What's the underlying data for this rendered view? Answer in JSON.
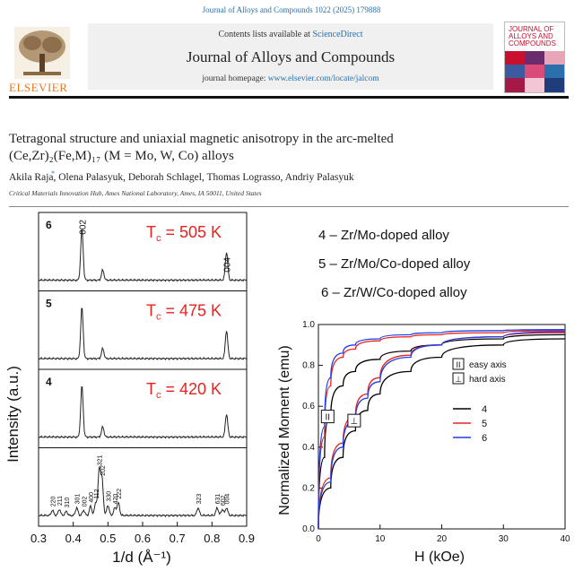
{
  "header": {
    "journal_ref": "Journal of Alloys and Compounds 1022 (2025) 179888",
    "contents_prefix": "Contents lists available at ",
    "contents_link": "ScienceDirect",
    "journal_title": "Journal of Alloys and Compounds",
    "homepage_prefix": "journal homepage: ",
    "homepage_link": "www.elsevier.com/locate/jalcom",
    "publisher": "ELSEVIER",
    "cover_title": "JOURNAL OF ALLOYS AND COMPOUNDS"
  },
  "article": {
    "title_line1": "Tetragonal structure and uniaxial magnetic anisotropy in the arc-melted",
    "title_line2": "(Ce,Zr)₂(Fe,M)₁₇ (M = Mo, W, Co) alloys",
    "authors": "Akila Raja, Olena Palasyuk, Deborah Schlagel, Thomas Lograsso, Andriy Palasyuk",
    "corresponding_mark": "*",
    "affiliation": "Critical Materials Innovation Hub, Ames National Laboratory, Ames, IA 50011, United States"
  },
  "alloy_labels": [
    "4 – Zr/Mo-doped alloy",
    "5 – Zr/Mo/Co-doped alloy",
    "6 – Zr/W/Co-doped alloy"
  ],
  "colors": {
    "link": "#2b6fa8",
    "elsevier": "#e87722",
    "tc": "#e8231f",
    "series4": "#000000",
    "series5": "#e8231f",
    "series6": "#1f3fe8"
  },
  "chart_data": [
    {
      "type": "line",
      "xlabel": "1/d (Å⁻¹)",
      "ylabel": "Intensity (a.u.)",
      "xlim": [
        0.3,
        0.9
      ],
      "x_ticks": [
        "0.3",
        "0.4",
        "0.5",
        "0.6",
        "0.7",
        "0.8",
        "0.9"
      ],
      "panels": [
        {
          "label": "6",
          "tc_text": "T",
          "tc_sub": "c",
          "tc_value": " = 505 K",
          "peaks": [
            [
              0.425,
              1.0
            ],
            [
              0.485,
              0.2
            ],
            [
              0.842,
              0.55
            ]
          ],
          "peak_labels": [
            "002",
            "004"
          ]
        },
        {
          "label": "5",
          "tc_text": "T",
          "tc_sub": "c",
          "tc_value": " = 475 K",
          "peaks": [
            [
              0.425,
              1.0
            ],
            [
              0.485,
              0.2
            ],
            [
              0.842,
              0.55
            ]
          ]
        },
        {
          "label": "4",
          "tc_text": "T",
          "tc_sub": "c",
          "tc_value": " = 420 K",
          "peaks": [
            [
              0.425,
              1.0
            ],
            [
              0.485,
              0.2
            ],
            [
              0.842,
              0.45
            ]
          ]
        },
        {
          "label": "",
          "peaks": [
            [
              0.34,
              0.1
            ],
            [
              0.36,
              0.12
            ],
            [
              0.38,
              0.08
            ],
            [
              0.41,
              0.15
            ],
            [
              0.43,
              0.1
            ],
            [
              0.45,
              0.18
            ],
            [
              0.465,
              0.25
            ],
            [
              0.475,
              0.9
            ],
            [
              0.483,
              0.7
            ],
            [
              0.5,
              0.2
            ],
            [
              0.52,
              0.15
            ],
            [
              0.53,
              0.25
            ],
            [
              0.76,
              0.15
            ],
            [
              0.815,
              0.15
            ],
            [
              0.83,
              0.12
            ],
            [
              0.842,
              0.15
            ]
          ],
          "peak_labels": [
            "220",
            "211",
            "310",
            "301",
            "002",
            "400",
            "112",
            "321",
            "202",
            "330",
            "420",
            "222",
            "323",
            "631",
            "602",
            "004"
          ]
        }
      ]
    },
    {
      "type": "line",
      "xlabel": "H (kOe)",
      "ylabel": "Normalized Moment (emu)",
      "xlim": [
        0,
        40
      ],
      "ylim": [
        0.0,
        1.0
      ],
      "x_ticks": [
        "0",
        "10",
        "20",
        "30",
        "40"
      ],
      "y_ticks": [
        "0.0",
        "0.2",
        "0.4",
        "0.6",
        "0.8",
        "1.0"
      ],
      "legend": [
        {
          "symbol": "II",
          "text": "easy axis"
        },
        {
          "symbol": "⊥",
          "text": "hard axis"
        }
      ],
      "series": [
        {
          "name": "4",
          "easy": [
            [
              0,
              0
            ],
            [
              1,
              0.35
            ],
            [
              2,
              0.55
            ],
            [
              4,
              0.7
            ],
            [
              6,
              0.77
            ],
            [
              10,
              0.83
            ],
            [
              15,
              0.87
            ],
            [
              20,
              0.9
            ],
            [
              30,
              0.93
            ],
            [
              40,
              0.95
            ]
          ],
          "hard": [
            [
              0,
              0
            ],
            [
              2,
              0.2
            ],
            [
              4,
              0.35
            ],
            [
              6,
              0.48
            ],
            [
              8,
              0.58
            ],
            [
              10,
              0.66
            ],
            [
              15,
              0.77
            ],
            [
              20,
              0.84
            ],
            [
              30,
              0.9
            ],
            [
              40,
              0.93
            ]
          ]
        },
        {
          "name": "5",
          "easy": [
            [
              0,
              0
            ],
            [
              1,
              0.45
            ],
            [
              2,
              0.7
            ],
            [
              4,
              0.84
            ],
            [
              6,
              0.88
            ],
            [
              10,
              0.92
            ],
            [
              15,
              0.94
            ],
            [
              20,
              0.95
            ],
            [
              30,
              0.96
            ],
            [
              40,
              0.97
            ]
          ],
          "hard": [
            [
              0,
              0
            ],
            [
              2,
              0.25
            ],
            [
              4,
              0.42
            ],
            [
              6,
              0.55
            ],
            [
              8,
              0.66
            ],
            [
              10,
              0.74
            ],
            [
              15,
              0.85
            ],
            [
              20,
              0.9
            ],
            [
              30,
              0.94
            ],
            [
              40,
              0.96
            ]
          ]
        },
        {
          "name": "6",
          "easy": [
            [
              0,
              0
            ],
            [
              1,
              0.5
            ],
            [
              2,
              0.74
            ],
            [
              4,
              0.86
            ],
            [
              6,
              0.9
            ],
            [
              10,
              0.93
            ],
            [
              15,
              0.95
            ],
            [
              20,
              0.96
            ],
            [
              30,
              0.97
            ],
            [
              40,
              0.975
            ]
          ],
          "hard": [
            [
              0,
              0
            ],
            [
              2,
              0.23
            ],
            [
              4,
              0.4
            ],
            [
              6,
              0.53
            ],
            [
              8,
              0.64
            ],
            [
              10,
              0.72
            ],
            [
              15,
              0.84
            ],
            [
              20,
              0.9
            ],
            [
              30,
              0.94
            ],
            [
              40,
              0.965
            ]
          ]
        }
      ]
    }
  ]
}
